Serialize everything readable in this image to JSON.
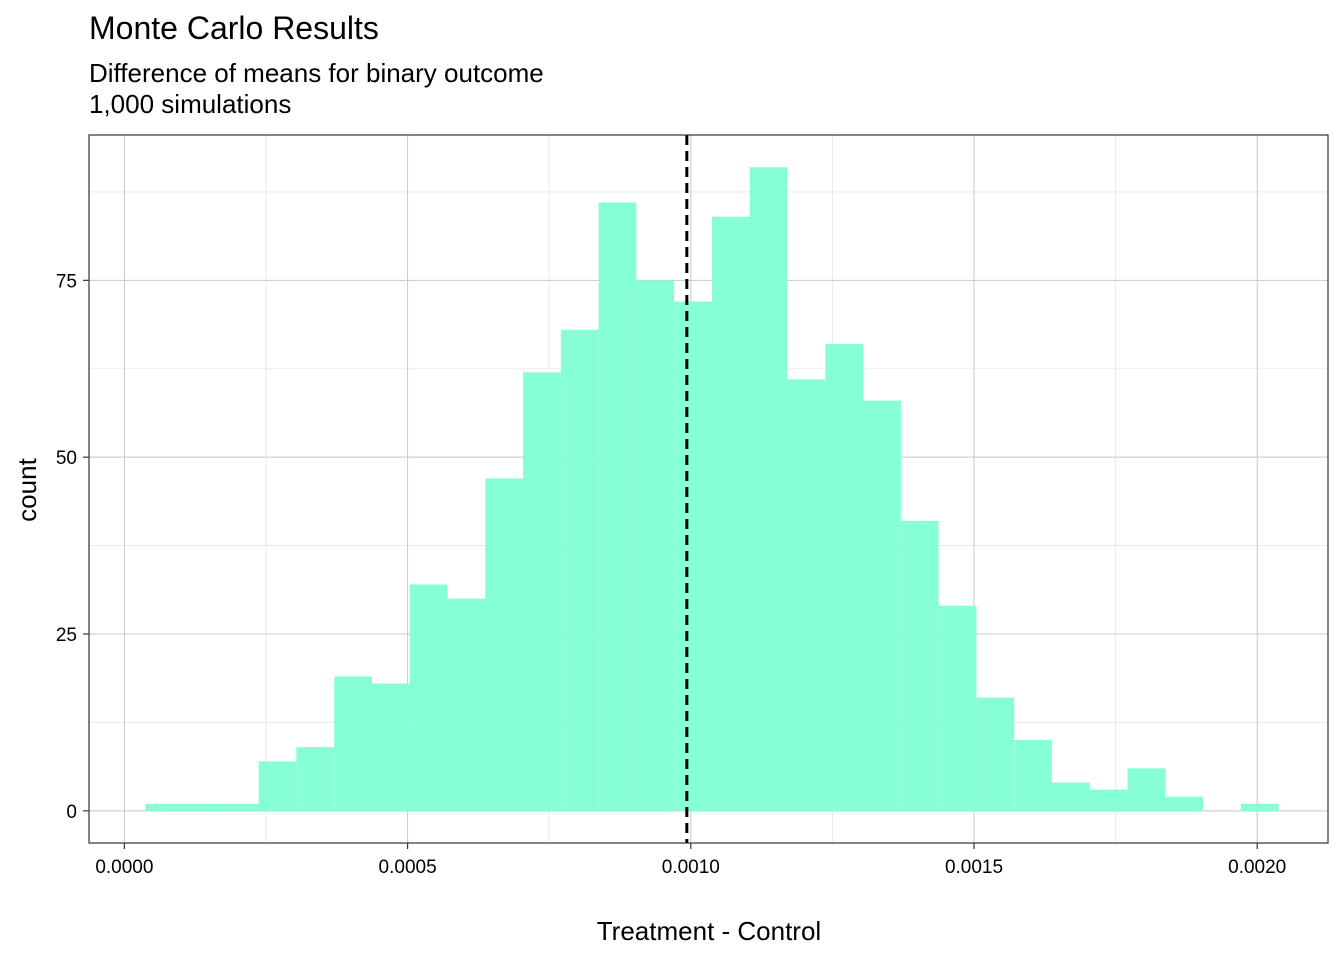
{
  "title": "Monte Carlo Results",
  "subtitle_lines": [
    "Difference of means for binary outcome",
    "1,000 simulations"
  ],
  "colors": {
    "bar_fill": "#7fffd4",
    "reference_line": "#000000",
    "grid_major": "#c8c8c8",
    "grid_minor": "#e6e6e6",
    "panel_border": "#333333"
  },
  "chart_data": {
    "type": "bar",
    "title": "Monte Carlo Results",
    "subtitle": "Difference of means for binary outcome\n1,000 simulations",
    "xlabel": "Treatment - Control",
    "ylabel": "count",
    "bin_width": 6.67e-05,
    "bins": [
      {
        "x": 7.02e-05,
        "count": 1
      },
      {
        "x": 0.0001369,
        "count": 1
      },
      {
        "x": 0.0002036,
        "count": 1
      },
      {
        "x": 0.0002703,
        "count": 7
      },
      {
        "x": 0.000337,
        "count": 9
      },
      {
        "x": 0.0004037,
        "count": 19
      },
      {
        "x": 0.0004704,
        "count": 18
      },
      {
        "x": 0.0005371,
        "count": 32
      },
      {
        "x": 0.0006038,
        "count": 30
      },
      {
        "x": 0.0006705,
        "count": 47
      },
      {
        "x": 0.0007372,
        "count": 62
      },
      {
        "x": 0.0008039,
        "count": 68
      },
      {
        "x": 0.0008706,
        "count": 86
      },
      {
        "x": 0.0009373,
        "count": 75
      },
      {
        "x": 0.001004,
        "count": 72
      },
      {
        "x": 0.0010707,
        "count": 84
      },
      {
        "x": 0.0011374,
        "count": 91
      },
      {
        "x": 0.0012041,
        "count": 61
      },
      {
        "x": 0.0012708,
        "count": 66
      },
      {
        "x": 0.0013375,
        "count": 58
      },
      {
        "x": 0.0014042,
        "count": 41
      },
      {
        "x": 0.0014709,
        "count": 29
      },
      {
        "x": 0.0015376,
        "count": 16
      },
      {
        "x": 0.0016043,
        "count": 10
      },
      {
        "x": 0.001671,
        "count": 4
      },
      {
        "x": 0.0017377,
        "count": 3
      },
      {
        "x": 0.0018044,
        "count": 6
      },
      {
        "x": 0.0018711,
        "count": 2
      },
      {
        "x": 0.0019378,
        "count": 0
      },
      {
        "x": 0.0020045,
        "count": 1
      }
    ],
    "reference_line": {
      "x": 0.000993,
      "style": "dashed"
    },
    "xlim": [
      -6.25e-05,
      0.002125
    ],
    "ylim": [
      -4.55,
      95.55
    ],
    "x_ticks": [
      {
        "value": 0.0,
        "label": "0.0000"
      },
      {
        "value": 0.0005,
        "label": "0.0005"
      },
      {
        "value": 0.001,
        "label": "0.0010"
      },
      {
        "value": 0.0015,
        "label": "0.0015"
      },
      {
        "value": 0.002,
        "label": "0.0020"
      }
    ],
    "y_ticks": [
      {
        "value": 0,
        "label": "0"
      },
      {
        "value": 25,
        "label": "25"
      },
      {
        "value": 50,
        "label": "50"
      },
      {
        "value": 75,
        "label": "75"
      }
    ],
    "grid": true,
    "legend": "none"
  }
}
